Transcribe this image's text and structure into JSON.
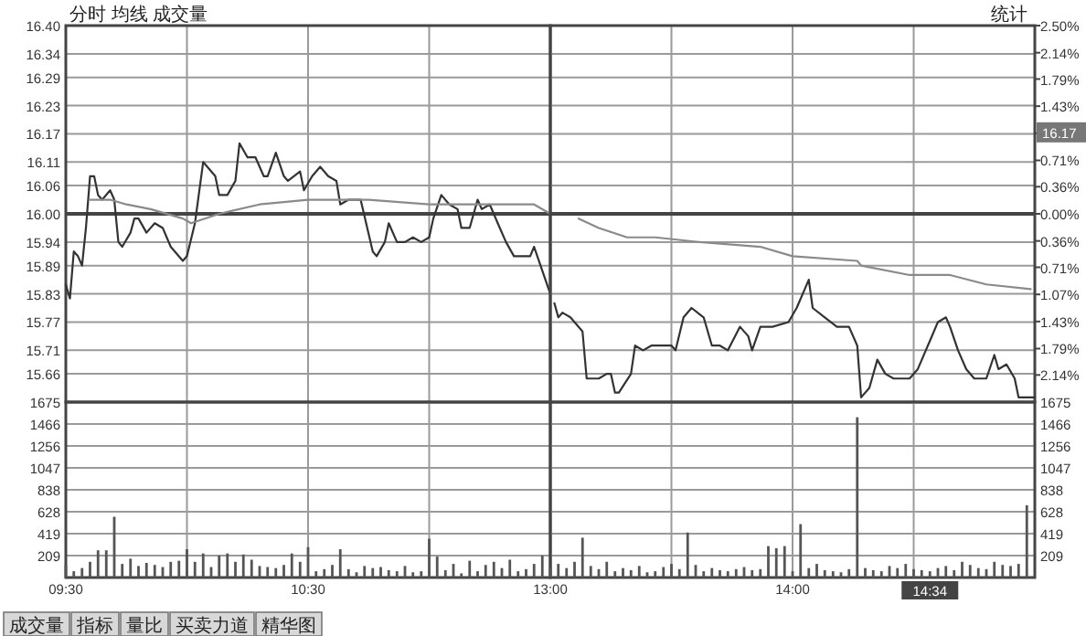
{
  "chart_data": [
    {
      "type": "line",
      "title": "分时 均线 成交量",
      "tick_labels": "y",
      "xlim": [
        9.5,
        11.5
      ],
      "xticks": [
        {
          "value": 9.5,
          "label": null
        },
        {
          "value": 10,
          "label": null
        },
        {
          "value": 10.5,
          "label": null
        },
        {
          "value": 11,
          "label": null
        },
        {
          "value": 11.5,
          "label": null
        }
      ],
      "ylim": [
        15.6,
        16.4
      ],
      "yticks": [
        15.66,
        15.71,
        15.77,
        15.83,
        15.89,
        15.94,
        {
          "value": 16.0,
          "label": "16.00"
        },
        16.06,
        16.11,
        16.17,
        16.23,
        16.29,
        16.34,
        {
          "value": 16.4,
          "label": "16.40"
        }
      ],
      "grid": true,
      "ref_lines": [
        {
          "axis": "y",
          "value": 16.0
        }
      ],
      "series": [
        {
          "color": "#333333",
          "x": [
            9.5,
            9.517,
            9.533,
            9.55,
            9.567,
            9.583,
            9.6,
            9.617,
            9.633,
            9.65,
            9.683,
            9.7,
            9.717,
            9.733,
            9.767,
            9.783,
            9.8,
            9.833,
            9.867,
            9.9,
            9.933,
            9.983,
            10.0,
            10.033,
            10.067,
            10.117,
            10.133,
            10.167,
            10.2,
            10.217,
            10.25,
            10.283,
            10.317,
            10.333,
            10.367,
            10.4,
            10.417,
            10.467,
            10.483,
            10.517,
            10.55,
            10.583,
            10.617,
            10.633,
            10.667,
            10.717,
            10.767,
            10.783,
            10.817,
            10.833,
            10.867,
            10.9,
            10.933,
            10.967,
            11.0,
            11.017,
            11.05,
            11.083,
            11.117,
            11.133,
            11.167,
            11.2,
            11.217,
            11.25,
            11.283,
            11.317,
            11.35,
            11.417,
            11.433,
            11.5
          ],
          "values": [
            15.85,
            15.82,
            15.92,
            15.91,
            15.89,
            15.97,
            16.08,
            16.08,
            16.04,
            16.03,
            16.05,
            16.03,
            15.94,
            15.93,
            15.96,
            15.99,
            15.99,
            15.96,
            15.98,
            15.97,
            15.93,
            15.9,
            15.91,
            15.98,
            16.11,
            16.08,
            16.04,
            16.04,
            16.07,
            16.15,
            16.12,
            16.12,
            16.08,
            16.08,
            16.13,
            16.08,
            16.07,
            16.09,
            16.05,
            16.08,
            16.1,
            16.08,
            16.07,
            16.02,
            16.03,
            16.03,
            15.92,
            15.91,
            15.94,
            15.98,
            15.94,
            15.94,
            15.95,
            15.94,
            15.95,
            15.99,
            16.04,
            16.02,
            16.01,
            15.97,
            15.97,
            16.03,
            16.01,
            16.02,
            15.98,
            15.94,
            15.91,
            15.91,
            15.93,
            15.83
          ]
        },
        {
          "color": "#8a8a8a",
          "x": [
            9.6,
            9.683,
            9.75,
            9.85,
            9.983,
            10.017,
            10.133,
            10.3,
            10.5,
            10.75,
            11.0,
            11.25,
            11.433,
            11.5
          ],
          "values": [
            16.03,
            16.03,
            16.02,
            16.01,
            15.99,
            15.98,
            16.0,
            16.02,
            16.03,
            16.03,
            16.02,
            16.02,
            16.02,
            16.0
          ]
        }
      ]
    },
    {
      "type": "line",
      "tick_labels": false,
      "annotations": [
        "统计",
        "16.17"
      ],
      "xlim": [
        13,
        15
      ],
      "xticks": [
        {
          "value": 13,
          "label": null
        },
        {
          "value": 13.5,
          "label": null
        },
        {
          "value": 14,
          "label": null
        },
        {
          "value": 14.5,
          "label": null
        },
        {
          "value": 15,
          "label": null
        }
      ],
      "ylim": [
        15.6,
        16.4
      ],
      "yticks": [
        15.66,
        15.71,
        15.77,
        15.83,
        15.89,
        15.94,
        16.0,
        16.06,
        16.11,
        16.17,
        16.23,
        16.29,
        16.34,
        16.4
      ],
      "y2lim": [
        -2.5,
        2.5
      ],
      "y2ticks": [
        {
          "value": -2.14,
          "label": "2.14%"
        },
        {
          "value": -1.79,
          "label": "1.79%"
        },
        {
          "value": -1.43,
          "label": "1.43%"
        },
        {
          "value": -1.07,
          "label": "1.07%"
        },
        {
          "value": -0.71,
          "label": "0.71%"
        },
        {
          "value": -0.36,
          "label": "0.36%"
        },
        {
          "value": 0,
          "label": "0.00%"
        },
        {
          "value": 0.36,
          "label": "0.36%"
        },
        {
          "value": 0.71,
          "label": "0.71%"
        },
        {
          "value": 1.07,
          "label": null
        },
        {
          "value": 1.43,
          "label": "1.43%"
        },
        {
          "value": 1.79,
          "label": "1.79%"
        },
        {
          "value": 2.14,
          "label": "2.14%"
        },
        {
          "value": 2.5,
          "label": "2.50%"
        }
      ],
      "grid": true,
      "ref_lines": [
        {
          "axis": "y",
          "value": 16.0
        }
      ],
      "series": [
        {
          "color": "#333333",
          "x": [
            13.017,
            13.033,
            13.05,
            13.083,
            13.133,
            13.15,
            13.2,
            13.233,
            13.25,
            13.267,
            13.283,
            13.333,
            13.35,
            13.383,
            13.417,
            13.5,
            13.517,
            13.55,
            13.583,
            13.633,
            13.667,
            13.7,
            13.733,
            13.783,
            13.817,
            13.833,
            13.867,
            13.917,
            13.983,
            14.017,
            14.067,
            14.083,
            14.133,
            14.183,
            14.233,
            14.267,
            14.283,
            14.317,
            14.35,
            14.383,
            14.417,
            14.483,
            14.517,
            14.567,
            14.6,
            14.633,
            14.65,
            14.683,
            14.717,
            14.75,
            14.8,
            14.833,
            14.85,
            14.883,
            14.917,
            14.933,
            15.0
          ],
          "values": [
            15.81,
            15.78,
            15.79,
            15.78,
            15.75,
            15.65,
            15.65,
            15.66,
            15.66,
            15.62,
            15.62,
            15.66,
            15.72,
            15.71,
            15.72,
            15.72,
            15.71,
            15.78,
            15.8,
            15.78,
            15.72,
            15.72,
            15.71,
            15.76,
            15.74,
            15.71,
            15.76,
            15.76,
            15.77,
            15.8,
            15.86,
            15.8,
            15.78,
            15.76,
            15.76,
            15.72,
            15.61,
            15.63,
            15.69,
            15.66,
            15.65,
            15.65,
            15.67,
            15.73,
            15.77,
            15.78,
            15.76,
            15.71,
            15.67,
            15.65,
            15.65,
            15.7,
            15.67,
            15.68,
            15.65,
            15.61,
            15.61
          ]
        },
        {
          "color": "#8a8a8a",
          "x": [
            13.117,
            13.2,
            13.317,
            13.433,
            13.617,
            13.867,
            14.0,
            14.267,
            14.283,
            14.483,
            14.65,
            14.8,
            14.983
          ],
          "values": [
            15.99,
            15.97,
            15.95,
            15.95,
            15.94,
            15.93,
            15.91,
            15.9,
            15.89,
            15.87,
            15.87,
            15.85,
            15.84
          ]
        }
      ]
    },
    {
      "type": "bar",
      "annotations": [
        "成交量",
        "指标",
        "量比",
        "买卖力道",
        "精华图"
      ],
      "xlim": [
        9.5,
        11.5
      ],
      "xticks": [
        {
          "value": 9.5,
          "label": "09:30"
        },
        {
          "value": 10,
          "label": null
        },
        {
          "value": 10.5,
          "label": "10:30"
        },
        {
          "value": 11,
          "label": null
        },
        {
          "value": 11.5,
          "label": null
        }
      ],
      "ylim": [
        0,
        1675
      ],
      "yticks": [
        209,
        419,
        628,
        838,
        1047,
        1256,
        1466,
        1675
      ],
      "grid": true,
      "series": [
        {
          "color": "#555555",
          "x": [
            9.5,
            9.533,
            9.567,
            9.6,
            9.633,
            9.667,
            9.7,
            9.733,
            9.767,
            9.8,
            9.833,
            9.867,
            9.9,
            9.933,
            9.967,
            10.0,
            10.033,
            10.067,
            10.1,
            10.133,
            10.167,
            10.2,
            10.233,
            10.267,
            10.3,
            10.333,
            10.367,
            10.4,
            10.433,
            10.467,
            10.5,
            10.533,
            10.567,
            10.6,
            10.633,
            10.667,
            10.7,
            10.733,
            10.767,
            10.8,
            10.833,
            10.867,
            10.9,
            10.933,
            10.967,
            11.0,
            11.033,
            11.067,
            11.1,
            11.133,
            11.167,
            11.2,
            11.233,
            11.267,
            11.3,
            11.333,
            11.367,
            11.4,
            11.433,
            11.467
          ],
          "values": [
            120,
            60,
            90,
            150,
            260,
            260,
            580,
            130,
            180,
            110,
            140,
            120,
            100,
            150,
            160,
            270,
            150,
            230,
            100,
            210,
            230,
            150,
            220,
            170,
            110,
            100,
            90,
            120,
            230,
            150,
            290,
            60,
            80,
            120,
            270,
            80,
            50,
            110,
            90,
            100,
            70,
            60,
            110,
            50,
            60,
            370,
            200,
            70,
            130,
            40,
            160,
            60,
            120,
            150,
            90,
            170,
            60,
            80,
            130,
            210
          ]
        }
      ]
    },
    {
      "type": "bar",
      "annotations": [
        {
          "text": "14:34",
          "x": 14.567,
          "y": 0
        }
      ],
      "xlim": [
        13,
        15
      ],
      "xticks": [
        {
          "value": 13,
          "label": "13:00"
        },
        {
          "value": 13.5,
          "label": null
        },
        {
          "value": 14,
          "label": "14:00"
        },
        {
          "value": 14.5,
          "label": null
        },
        {
          "value": 15,
          "label": null
        }
      ],
      "ylim": [
        0,
        1675
      ],
      "yticks": [
        209,
        419,
        628,
        838,
        1047,
        1256,
        1466,
        1675
      ],
      "grid": true,
      "series": [
        {
          "color": "#555555",
          "x": [
            13.0,
            13.033,
            13.067,
            13.1,
            13.133,
            13.167,
            13.2,
            13.233,
            13.267,
            13.3,
            13.333,
            13.367,
            13.4,
            13.433,
            13.467,
            13.5,
            13.533,
            13.567,
            13.6,
            13.633,
            13.667,
            13.7,
            13.733,
            13.767,
            13.8,
            13.833,
            13.867,
            13.9,
            13.933,
            13.967,
            14.0,
            14.033,
            14.067,
            14.1,
            14.133,
            14.167,
            14.2,
            14.233,
            14.267,
            14.3,
            14.333,
            14.367,
            14.4,
            14.433,
            14.467,
            14.5,
            14.533,
            14.567,
            14.6,
            14.633,
            14.667,
            14.7,
            14.733,
            14.767,
            14.8,
            14.833,
            14.867,
            14.9,
            14.933,
            14.967
          ],
          "values": [
            100,
            130,
            90,
            150,
            380,
            110,
            80,
            150,
            60,
            90,
            70,
            110,
            50,
            60,
            100,
            130,
            80,
            430,
            120,
            60,
            90,
            70,
            60,
            80,
            100,
            70,
            80,
            300,
            280,
            300,
            60,
            510,
            90,
            130,
            70,
            60,
            50,
            80,
            1530,
            90,
            70,
            60,
            110,
            90,
            130,
            80,
            70,
            60,
            90,
            110,
            70,
            150,
            120,
            90,
            80,
            150,
            120,
            110,
            130,
            690
          ]
        }
      ]
    }
  ]
}
